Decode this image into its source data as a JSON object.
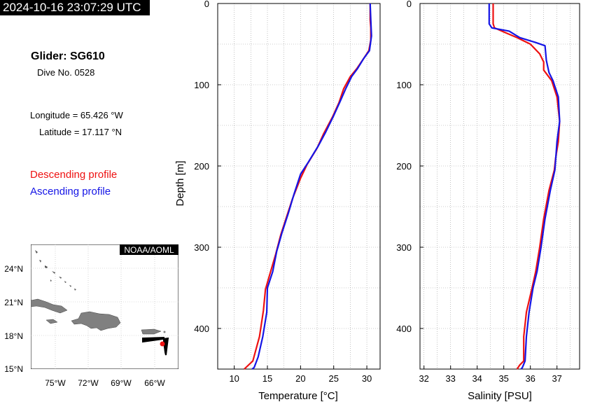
{
  "header": {
    "timestamp": "2024-10-16 23:07:29 UTC",
    "glider": "Glider: SG610",
    "dive": "Dive No. 0528",
    "longitude": "Longitude = 65.426 °W",
    "latitude": "Latitude = 17.117 °N",
    "descending_label": "Descending profile",
    "ascending_label": "Ascending profile"
  },
  "colors": {
    "descending": "#ee1111",
    "ascending": "#1515e6",
    "land": "#808080",
    "track": "#000000"
  },
  "map": {
    "credit": "NOAA/AOML",
    "lat_ticks": [
      "24°N",
      "21°N",
      "18°N",
      "15°N"
    ],
    "lon_ticks": [
      "75°W",
      "72°W",
      "69°W",
      "66°W"
    ],
    "glider_position": {
      "lon": -65.426,
      "lat": 17.117
    }
  },
  "chart_data": [
    {
      "type": "line",
      "xlabel": "Temperature [°C]",
      "ylabel": "Depth [m]",
      "xlim": [
        7.5,
        32
      ],
      "ylim": [
        450,
        0
      ],
      "xticks": [
        10,
        15,
        20,
        25,
        30
      ],
      "yticks": [
        0,
        100,
        200,
        300,
        400
      ],
      "grid": true,
      "series": [
        {
          "name": "Descending profile",
          "x": [
            30.5,
            30.5,
            30.6,
            30.6,
            30.3,
            29.5,
            28.5,
            27.5,
            26.5,
            25.8,
            24.8,
            23.5,
            22.5,
            21.0,
            20.0,
            18.8,
            18.0,
            17.0,
            16.2,
            15.3,
            14.7,
            14.4,
            13.8,
            12.8,
            11.5
          ],
          "y": [
            0,
            20,
            30,
            45,
            58,
            68,
            80,
            90,
            105,
            122,
            140,
            160,
            178,
            198,
            215,
            240,
            260,
            285,
            310,
            335,
            352,
            378,
            410,
            440,
            450
          ]
        },
        {
          "name": "Ascending profile",
          "x": [
            30.5,
            30.6,
            30.7,
            30.4,
            29.5,
            28.6,
            27.7,
            26.8,
            26.0,
            25.0,
            23.8,
            22.7,
            21.2,
            20.0,
            19.0,
            18.2,
            17.2,
            16.4,
            15.8,
            15.0,
            14.9,
            14.3,
            13.6,
            13.0,
            12.7
          ],
          "y": [
            0,
            20,
            40,
            58,
            68,
            80,
            90,
            105,
            120,
            138,
            158,
            175,
            195,
            210,
            235,
            257,
            282,
            305,
            330,
            350,
            380,
            410,
            435,
            448,
            450
          ]
        }
      ]
    },
    {
      "type": "line",
      "xlabel": "Salinity [PSU]",
      "ylabel": "",
      "xlim": [
        31.85,
        37.85
      ],
      "ylim": [
        450,
        0
      ],
      "xticks": [
        32,
        33,
        34,
        35,
        36,
        37
      ],
      "yticks": [
        0,
        100,
        200,
        300,
        400
      ],
      "grid": true,
      "series": [
        {
          "name": "Descending profile",
          "x": [
            34.6,
            34.6,
            34.65,
            35.0,
            35.5,
            36.0,
            36.35,
            36.5,
            36.5,
            36.8,
            37.0,
            37.1,
            37.05,
            36.95,
            36.9,
            36.7,
            36.5,
            36.35,
            36.2,
            36.05,
            35.85,
            35.75,
            35.75,
            35.6,
            35.5
          ],
          "y": [
            0,
            25,
            30,
            35,
            42,
            50,
            62,
            72,
            82,
            95,
            115,
            145,
            170,
            190,
            205,
            230,
            265,
            300,
            330,
            352,
            380,
            410,
            440,
            445,
            450
          ]
        },
        {
          "name": "Ascending profile",
          "x": [
            34.45,
            34.45,
            34.55,
            35.2,
            35.6,
            36.2,
            36.55,
            36.6,
            36.7,
            36.85,
            37.05,
            37.1,
            37.0,
            36.92,
            36.75,
            36.55,
            36.4,
            36.25,
            36.1,
            35.95,
            35.85,
            35.8,
            35.7,
            35.65
          ],
          "y": [
            0,
            25,
            30,
            34,
            42,
            48,
            52,
            70,
            85,
            95,
            115,
            145,
            170,
            205,
            230,
            265,
            300,
            330,
            350,
            380,
            410,
            440,
            448,
            450
          ]
        }
      ]
    }
  ]
}
